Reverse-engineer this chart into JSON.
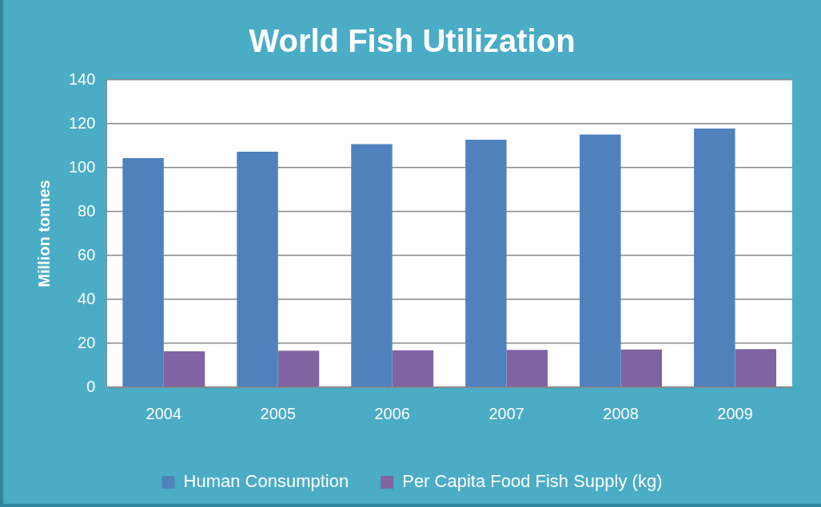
{
  "chart_data": {
    "type": "bar",
    "title": "World Fish Utilization",
    "ylabel": "Million tonnes",
    "categories": [
      "2004",
      "2005",
      "2006",
      "2007",
      "2008",
      "2009"
    ],
    "series": [
      {
        "name": "Human Consumption",
        "color": "#4f81bd",
        "values": [
          104.4,
          107.3,
          110.7,
          112.7,
          115.1,
          117.8
        ]
      },
      {
        "name": "Per Capita Food Fish Supply (kg)",
        "color": "#8064a2",
        "values": [
          16.4,
          16.6,
          16.8,
          17.0,
          17.2,
          17.4
        ]
      }
    ],
    "ylim": [
      0,
      140
    ],
    "yticks": [
      0,
      20,
      40,
      60,
      80,
      100,
      120,
      140
    ],
    "grid": "y",
    "legend": "bottom"
  }
}
